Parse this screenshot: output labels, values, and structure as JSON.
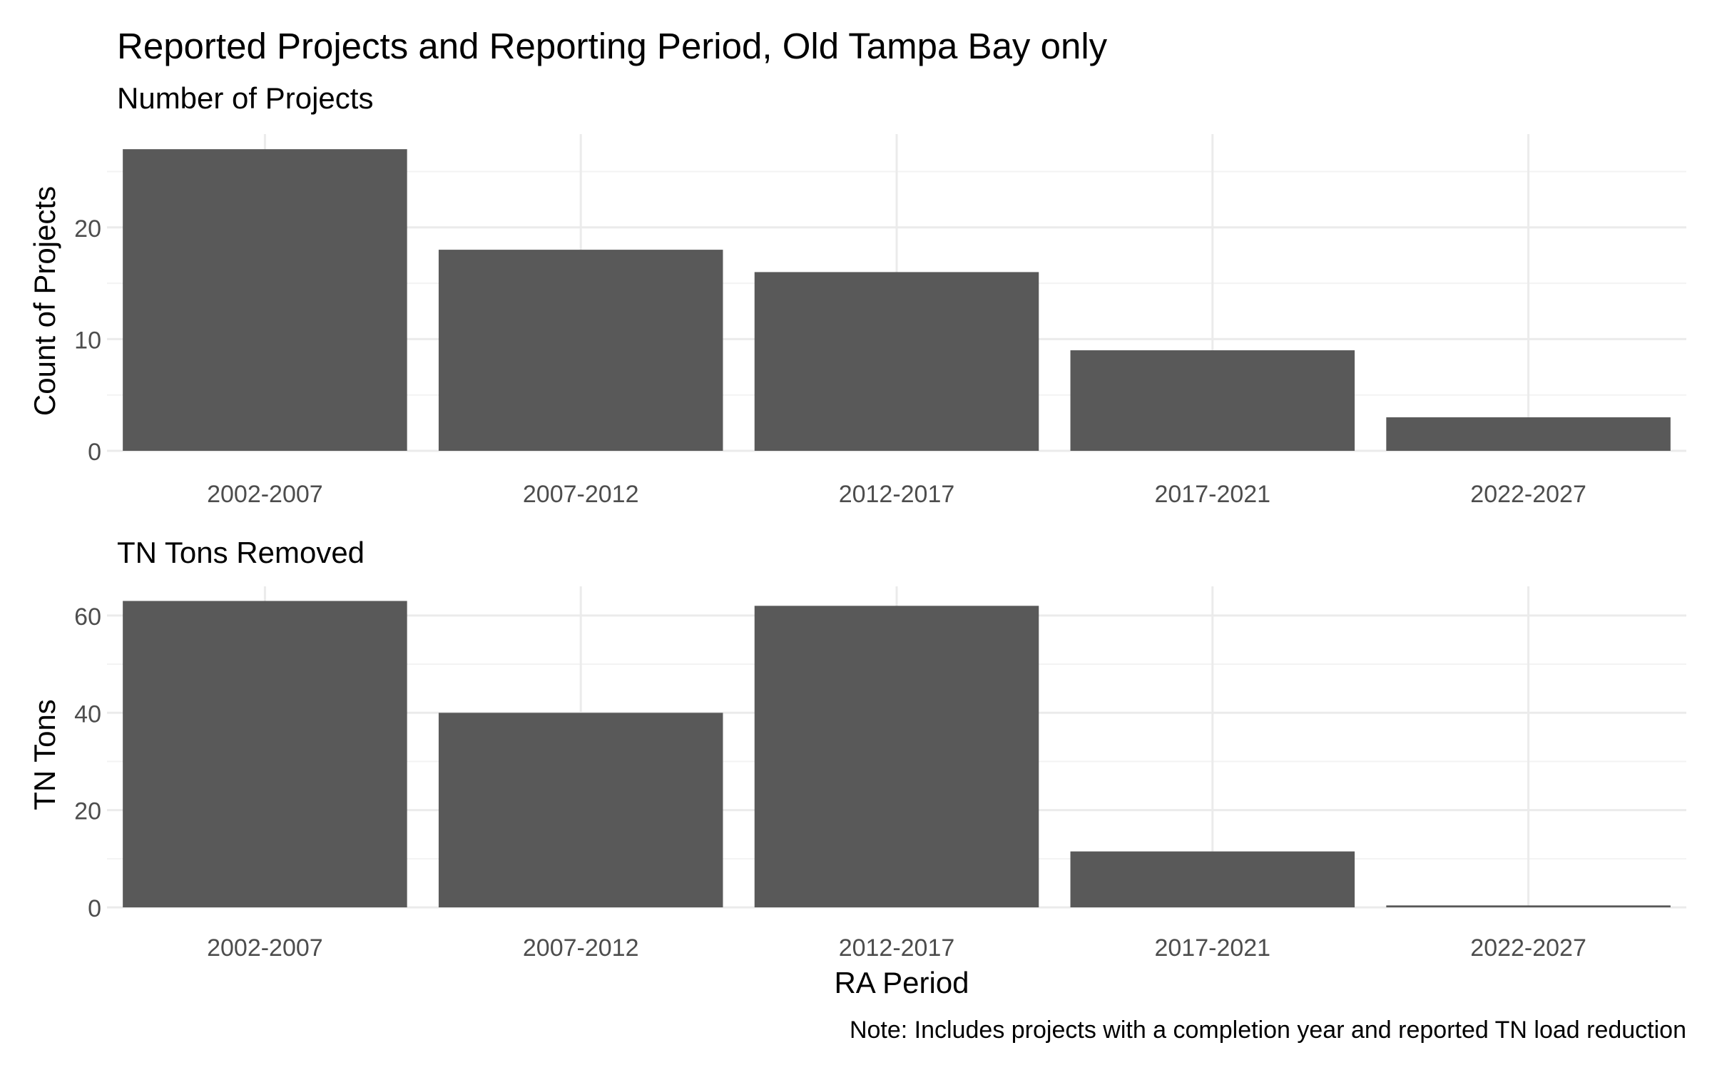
{
  "title": "Reported Projects and Reporting Period, Old Tampa Bay only",
  "xlabel": "RA Period",
  "note": "Note: Includes projects with a completion year and reported TN load reduction",
  "colors": {
    "bar": "#595959",
    "grid_major": "#ebebeb",
    "grid_minor": "#f3f3f3",
    "tick_text": "#4d4d4d"
  },
  "chart_data": [
    {
      "type": "bar",
      "subtitle": "Number of Projects",
      "ylabel": "Count of Projects",
      "categories": [
        "2002-2007",
        "2007-2012",
        "2012-2017",
        "2017-2021",
        "2022-2027"
      ],
      "values": [
        27,
        18,
        16,
        9,
        3
      ],
      "ylim": [
        0,
        28.35
      ],
      "yticks": [
        0,
        10,
        20
      ],
      "grid": true
    },
    {
      "type": "bar",
      "subtitle": "TN Tons Removed",
      "ylabel": "TN Tons",
      "categories": [
        "2002-2007",
        "2007-2012",
        "2012-2017",
        "2017-2021",
        "2022-2027"
      ],
      "values": [
        63,
        40,
        62,
        11.5,
        0.4
      ],
      "ylim": [
        0,
        66
      ],
      "yticks": [
        0,
        20,
        40,
        60
      ],
      "grid": true
    }
  ]
}
